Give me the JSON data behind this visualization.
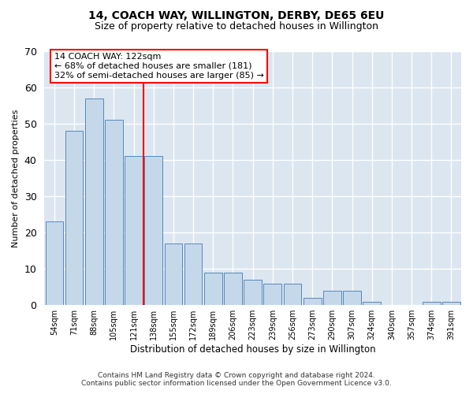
{
  "title": "14, COACH WAY, WILLINGTON, DERBY, DE65 6EU",
  "subtitle": "Size of property relative to detached houses in Willington",
  "xlabel": "Distribution of detached houses by size in Willington",
  "ylabel": "Number of detached properties",
  "bar_color": "#c5d8ea",
  "bar_edge_color": "#5588bb",
  "background_color": "#dce6f0",
  "categories": [
    "54sqm",
    "71sqm",
    "88sqm",
    "105sqm",
    "121sqm",
    "138sqm",
    "155sqm",
    "172sqm",
    "189sqm",
    "206sqm",
    "223sqm",
    "239sqm",
    "256sqm",
    "273sqm",
    "290sqm",
    "307sqm",
    "324sqm",
    "340sqm",
    "357sqm",
    "374sqm",
    "391sqm"
  ],
  "values": [
    23,
    48,
    57,
    51,
    41,
    41,
    17,
    17,
    9,
    9,
    7,
    6,
    6,
    2,
    4,
    4,
    1,
    0,
    0,
    1,
    1
  ],
  "ylim": [
    0,
    70
  ],
  "yticks": [
    0,
    10,
    20,
    30,
    40,
    50,
    60,
    70
  ],
  "vline_pos": 4.5,
  "annotation_text": "14 COACH WAY: 122sqm\n← 68% of detached houses are smaller (181)\n32% of semi-detached houses are larger (85) →",
  "footer_line1": "Contains HM Land Registry data © Crown copyright and database right 2024.",
  "footer_line2": "Contains public sector information licensed under the Open Government Licence v3.0."
}
